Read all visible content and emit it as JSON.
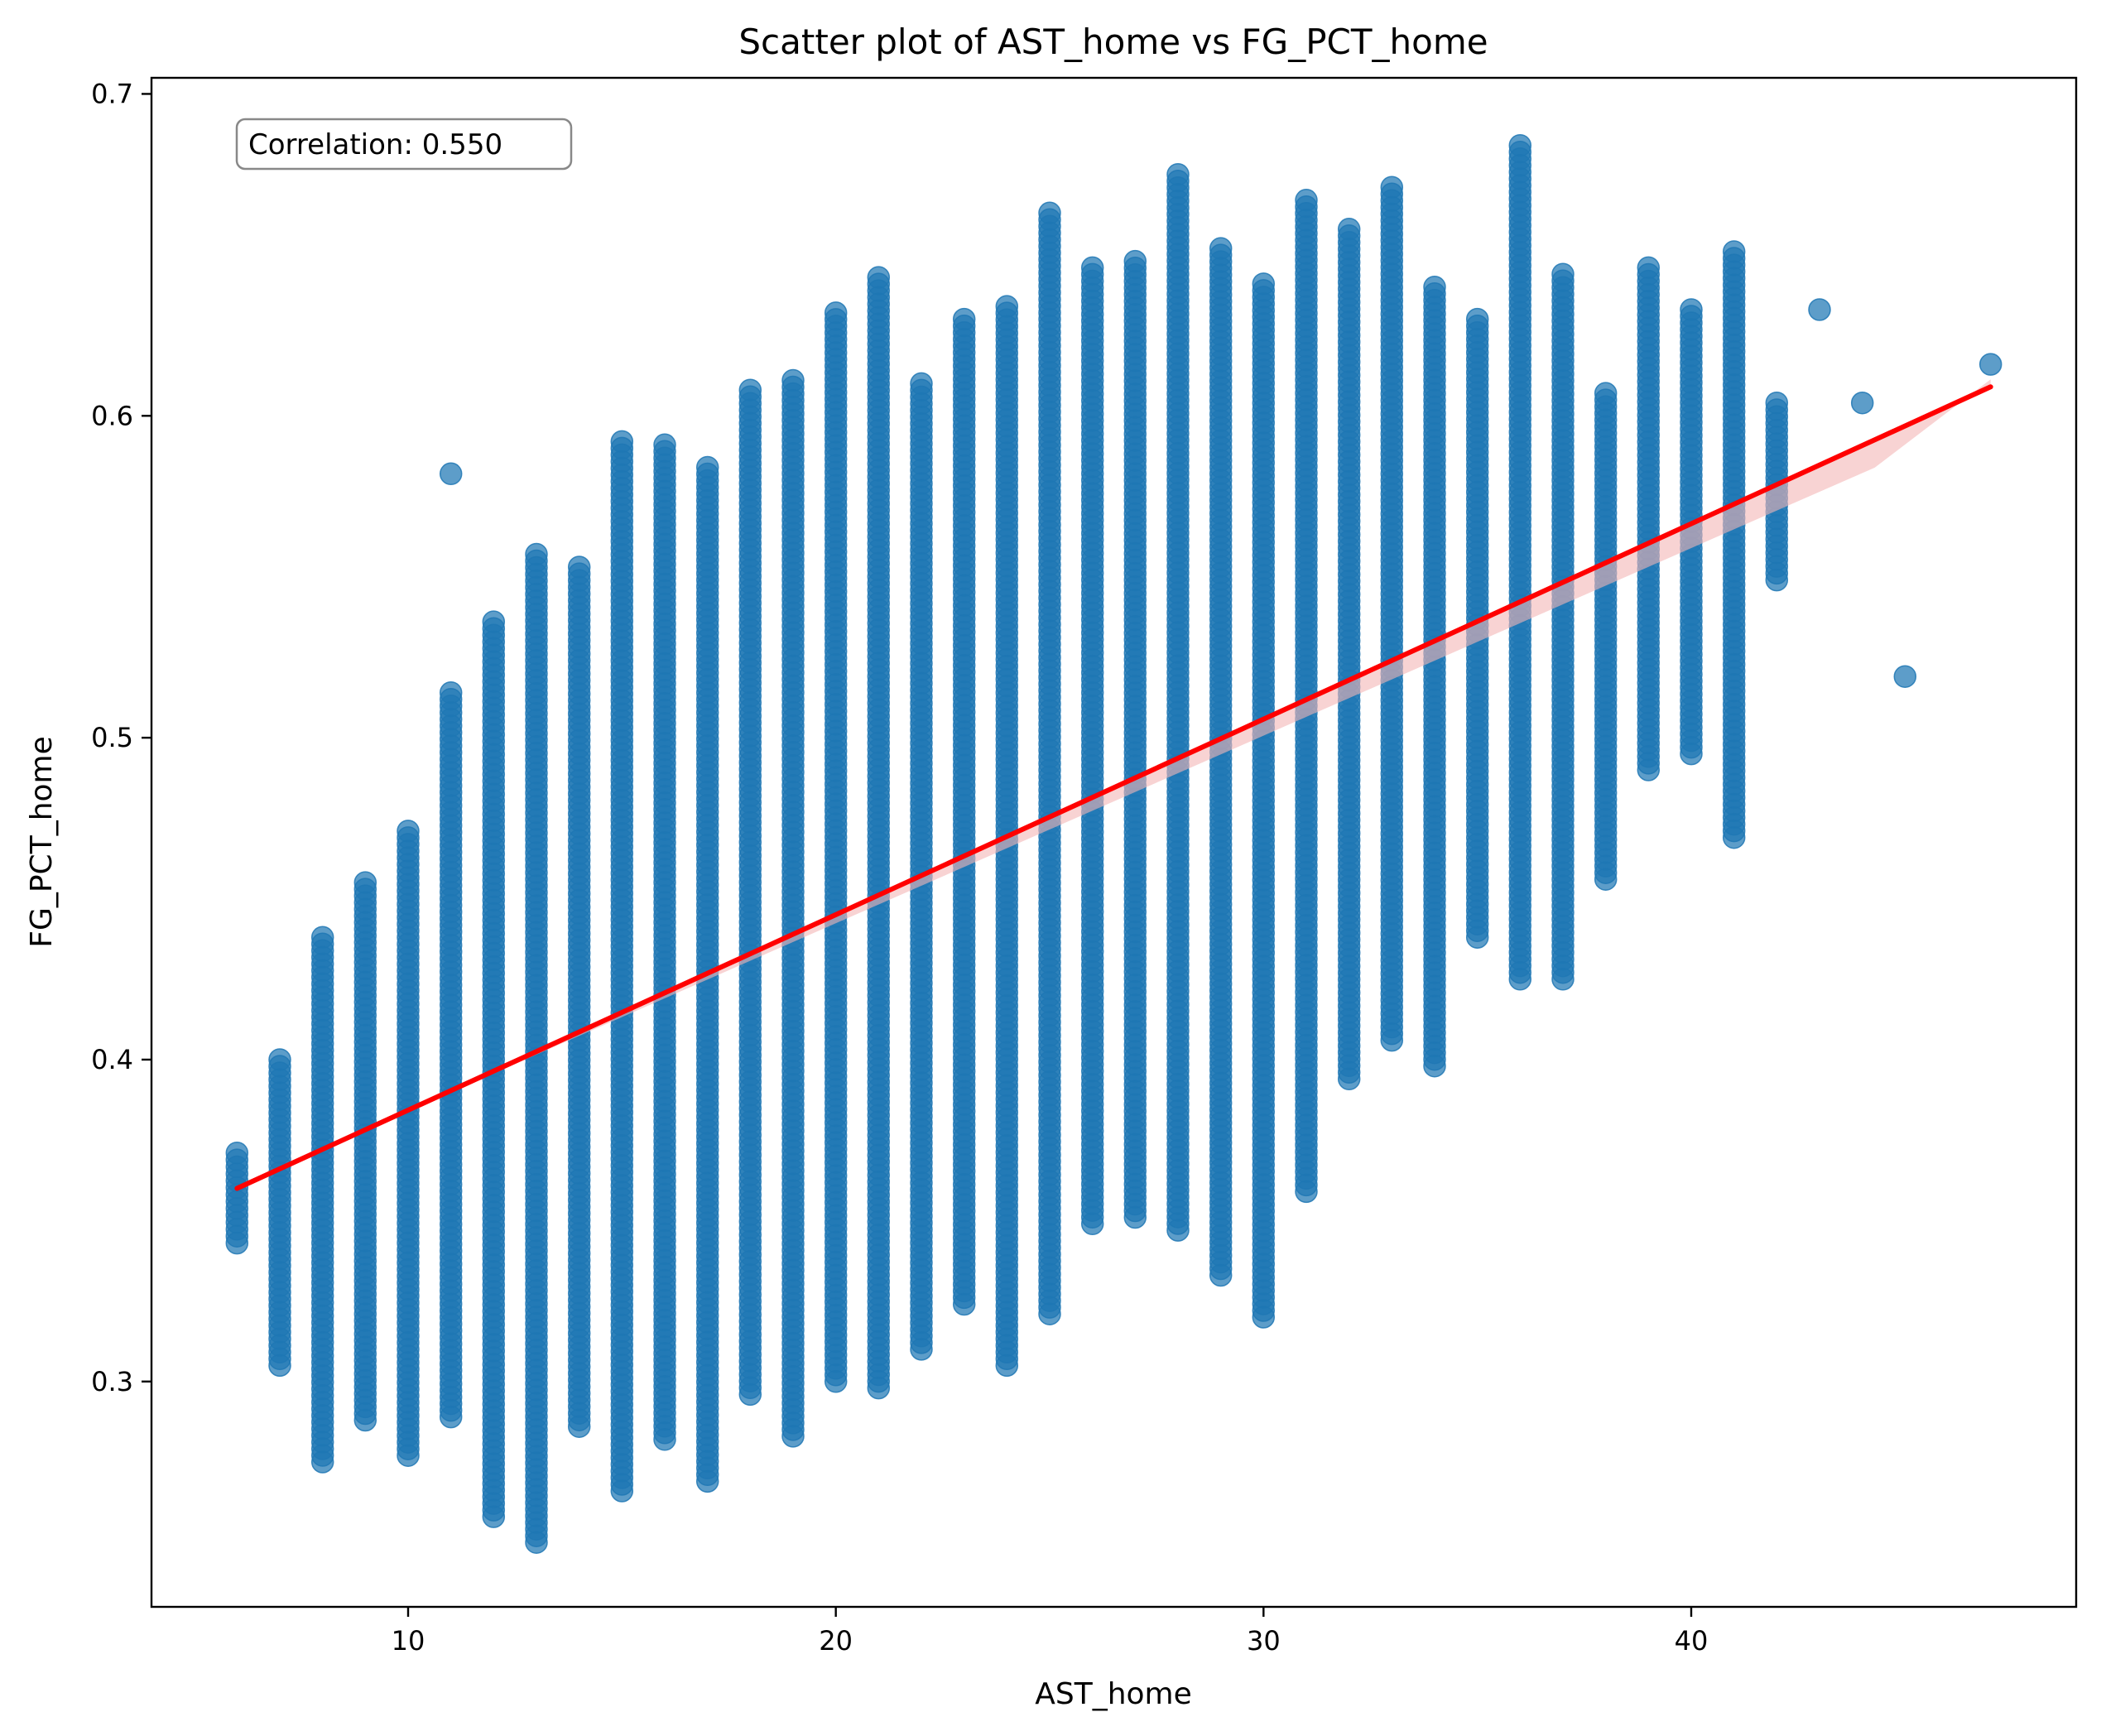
{
  "chart_data": {
    "type": "scatter",
    "title": "Scatter plot of AST_home vs FG_PCT_home",
    "xlabel": "AST_home",
    "ylabel": "FG_PCT_home",
    "xlim": [
      4,
      49
    ],
    "ylim": [
      0.23,
      0.705
    ],
    "xticks": [
      10,
      20,
      30,
      40
    ],
    "yticks": [
      0.3,
      0.4,
      0.5,
      0.6,
      0.7
    ],
    "xtick_labels": [
      "10",
      "20",
      "30",
      "40"
    ],
    "ytick_labels": [
      "0.3",
      "0.4",
      "0.5",
      "0.6",
      "0.7"
    ],
    "grid": false,
    "annotation": "Correlation: 0.550",
    "colors": {
      "points": "#1f77b4",
      "trend": "#ff0000",
      "ci_band": "#f4b6b6"
    },
    "trendline": {
      "x": [
        6,
        47
      ],
      "y": [
        0.36,
        0.609
      ]
    },
    "columns": [
      {
        "x": 6,
        "min": 0.343,
        "max": 0.371
      },
      {
        "x": 7,
        "min": 0.305,
        "max": 0.4
      },
      {
        "x": 8,
        "min": 0.275,
        "max": 0.438
      },
      {
        "x": 9,
        "min": 0.288,
        "max": 0.455
      },
      {
        "x": 10,
        "min": 0.277,
        "max": 0.471
      },
      {
        "x": 11,
        "min": 0.289,
        "max": 0.514
      },
      {
        "x": 12,
        "min": 0.258,
        "max": 0.536
      },
      {
        "x": 13,
        "min": 0.25,
        "max": 0.557
      },
      {
        "x": 14,
        "min": 0.286,
        "max": 0.553
      },
      {
        "x": 15,
        "min": 0.266,
        "max": 0.592
      },
      {
        "x": 16,
        "min": 0.282,
        "max": 0.591
      },
      {
        "x": 17,
        "min": 0.269,
        "max": 0.584
      },
      {
        "x": 18,
        "min": 0.296,
        "max": 0.608
      },
      {
        "x": 19,
        "min": 0.283,
        "max": 0.611
      },
      {
        "x": 20,
        "min": 0.3,
        "max": 0.632
      },
      {
        "x": 21,
        "min": 0.298,
        "max": 0.643
      },
      {
        "x": 22,
        "min": 0.31,
        "max": 0.61
      },
      {
        "x": 23,
        "min": 0.324,
        "max": 0.63
      },
      {
        "x": 24,
        "min": 0.305,
        "max": 0.634
      },
      {
        "x": 25,
        "min": 0.321,
        "max": 0.663
      },
      {
        "x": 26,
        "min": 0.349,
        "max": 0.646
      },
      {
        "x": 27,
        "min": 0.351,
        "max": 0.648
      },
      {
        "x": 28,
        "min": 0.347,
        "max": 0.675
      },
      {
        "x": 29,
        "min": 0.333,
        "max": 0.652
      },
      {
        "x": 30,
        "min": 0.32,
        "max": 0.641
      },
      {
        "x": 31,
        "min": 0.359,
        "max": 0.667
      },
      {
        "x": 32,
        "min": 0.394,
        "max": 0.658
      },
      {
        "x": 33,
        "min": 0.406,
        "max": 0.671
      },
      {
        "x": 34,
        "min": 0.398,
        "max": 0.64
      },
      {
        "x": 35,
        "min": 0.438,
        "max": 0.63
      },
      {
        "x": 36,
        "min": 0.425,
        "max": 0.684
      },
      {
        "x": 37,
        "min": 0.425,
        "max": 0.644
      },
      {
        "x": 38,
        "min": 0.456,
        "max": 0.607
      },
      {
        "x": 39,
        "min": 0.49,
        "max": 0.646
      },
      {
        "x": 40,
        "min": 0.495,
        "max": 0.633
      },
      {
        "x": 41,
        "min": 0.469,
        "max": 0.651
      },
      {
        "x": 42,
        "min": 0.549,
        "max": 0.604
      }
    ],
    "outliers": [
      {
        "x": 11,
        "y": 0.582
      },
      {
        "x": 43,
        "y": 0.633
      },
      {
        "x": 44,
        "y": 0.604
      },
      {
        "x": 45,
        "y": 0.519
      },
      {
        "x": 47,
        "y": 0.616
      }
    ]
  }
}
